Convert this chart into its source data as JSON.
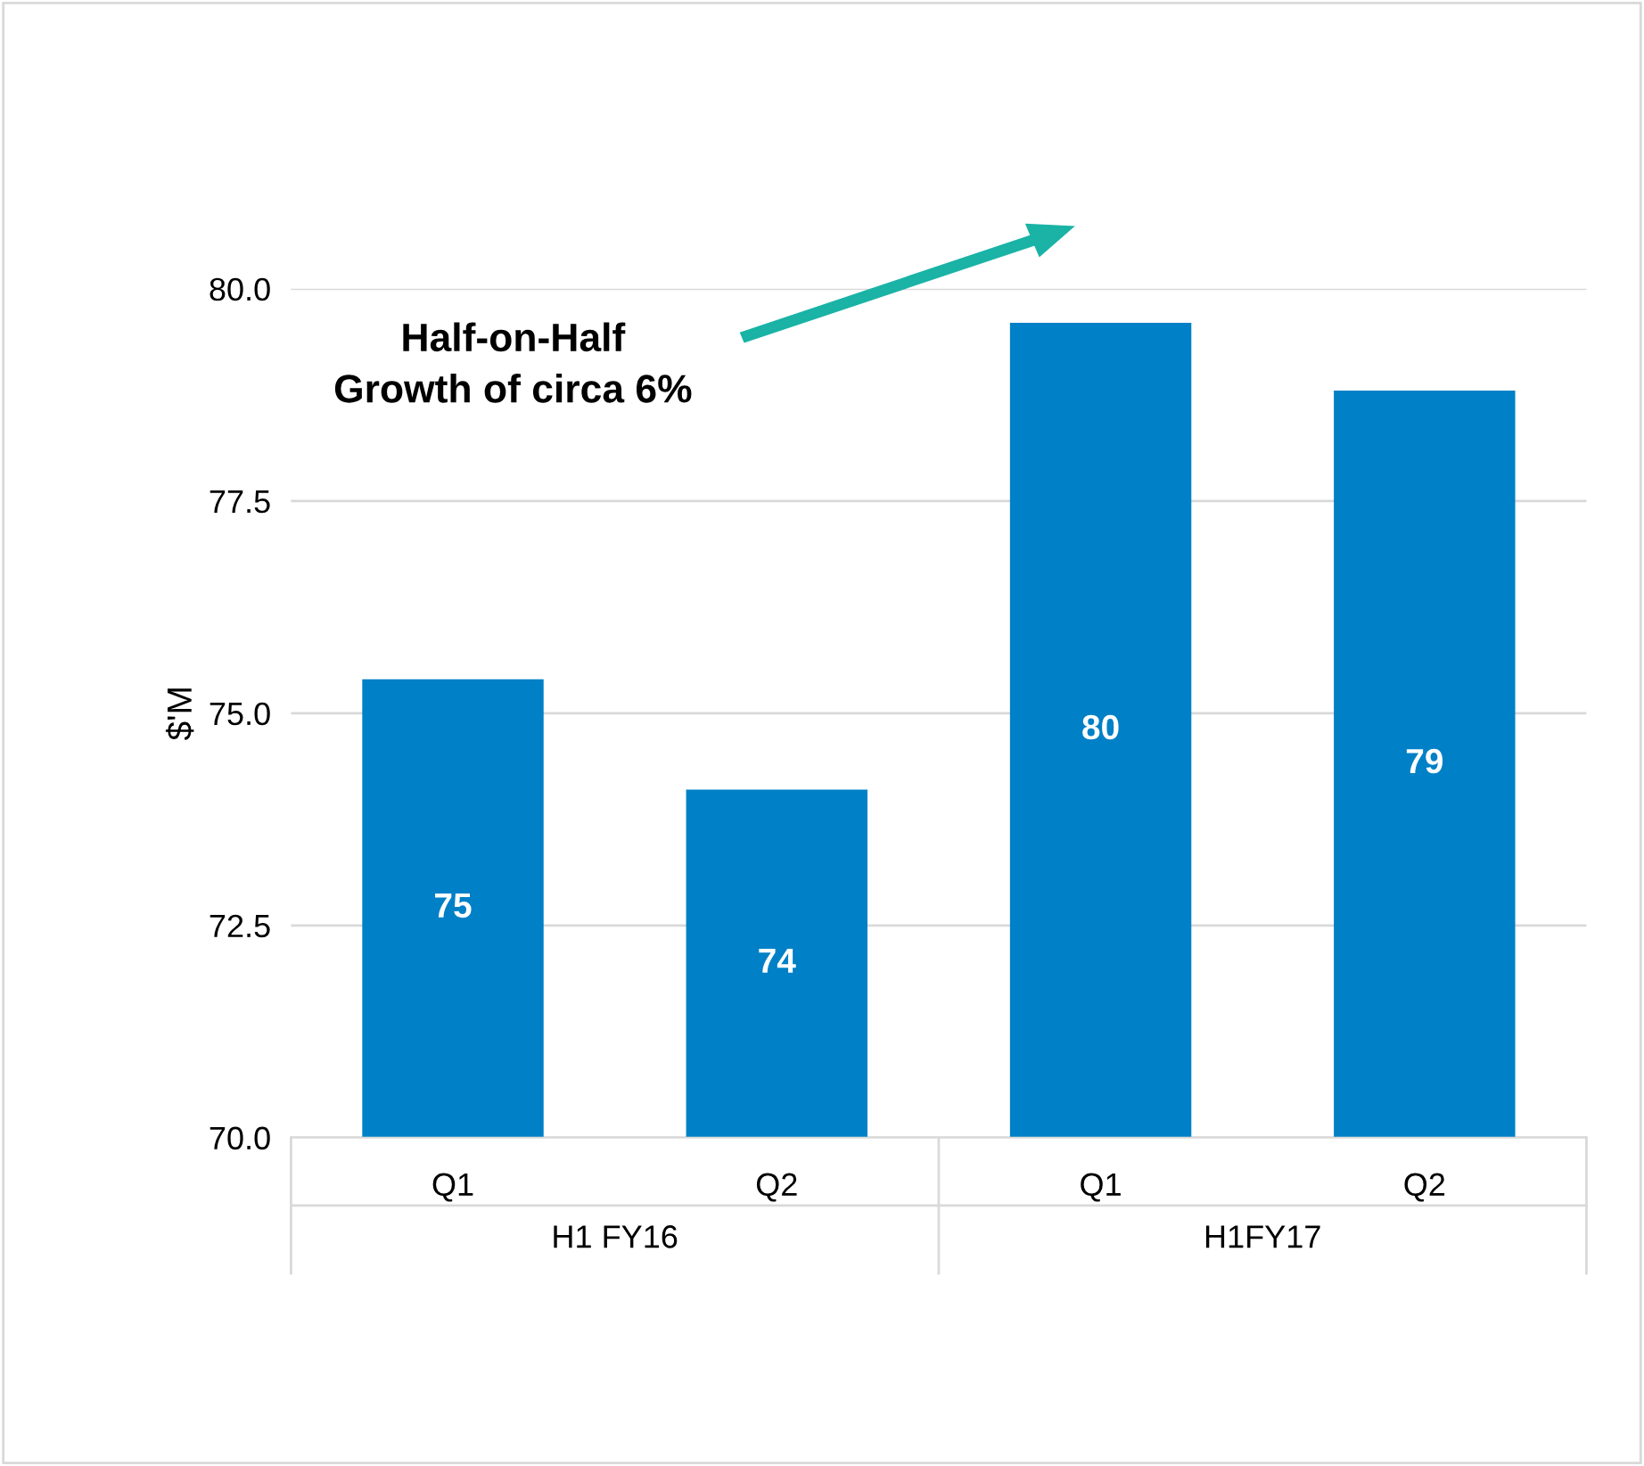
{
  "chart_data": {
    "type": "bar",
    "ylabel": "$'M",
    "categories": [
      "Q1",
      "Q2",
      "Q1",
      "Q2"
    ],
    "values": [
      75.4,
      74.1,
      79.6,
      78.8
    ],
    "value_labels": [
      "75",
      "74",
      "80",
      "79"
    ],
    "color": "#0080c6",
    "ylim": [
      70,
      80
    ],
    "yticks": [
      {
        "value": 70,
        "label": "70.0"
      },
      {
        "value": 72.5,
        "label": "72.5"
      },
      {
        "value": 75,
        "label": "75.0"
      },
      {
        "value": 77.5,
        "label": "77.5"
      },
      {
        "value": 80,
        "label": "80.0"
      }
    ],
    "grid": "y",
    "annotations": [
      "Half-on-Half\nGrowth of circa 6%",
      "H1 FY16",
      "H1FY17"
    ]
  }
}
